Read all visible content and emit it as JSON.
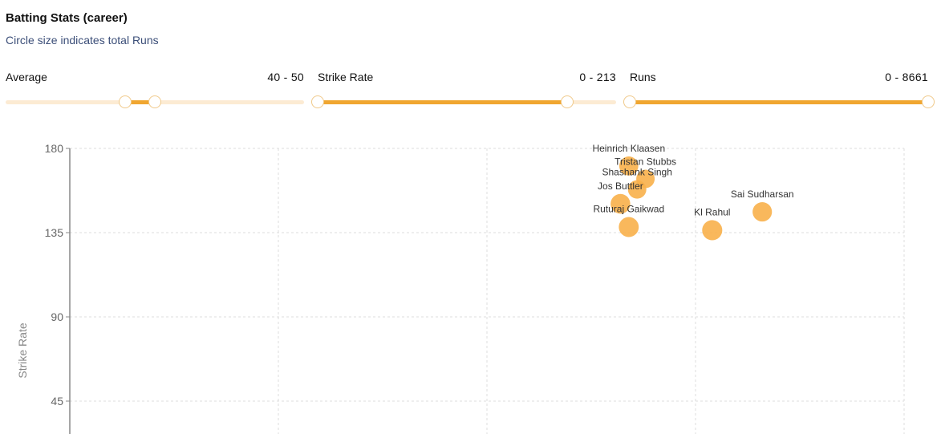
{
  "header": {
    "title": "Batting Stats (career)",
    "subtitle": "Circle size indicates total Runs"
  },
  "filters": [
    {
      "label": "Average",
      "range_text": "40 - 50",
      "min": 0,
      "max": 100,
      "low": 40,
      "high": 50
    },
    {
      "label": "Strike Rate",
      "range_text": "0 - 213",
      "min": 0,
      "max": 255,
      "low": 0,
      "high": 213
    },
    {
      "label": "Runs",
      "range_text": "0 - 8661",
      "min": 0,
      "max": 8661,
      "low": 0,
      "high": 8661
    }
  ],
  "colors": {
    "accent": "#f0a630",
    "point": "#f8b04a",
    "track": "#fcebd3"
  },
  "chart_data": {
    "type": "scatter",
    "title": "Batting Stats (career)",
    "subtitle": "Circle size indicates total Runs",
    "xlabel": "",
    "ylabel": "Strike Rate",
    "xlim": [
      40,
      50
    ],
    "ylim": [
      0,
      180
    ],
    "yticks": [
      "180",
      "135",
      "90",
      "45"
    ],
    "grid": true,
    "size_encodes": "Runs",
    "points": [
      {
        "name": "Heinrich Klaasen",
        "average": 46.7,
        "strike_rate": 170.6,
        "runs": 3000
      },
      {
        "name": "Tristan Stubbs",
        "average": 46.9,
        "strike_rate": 163.7,
        "runs": 2600
      },
      {
        "name": "Shashank Singh",
        "average": 46.8,
        "strike_rate": 158.1,
        "runs": 2600
      },
      {
        "name": "Jos Buttler",
        "average": 46.6,
        "strike_rate": 150.4,
        "runs": 3400
      },
      {
        "name": "Ruturaj Gaikwad",
        "average": 46.7,
        "strike_rate": 138.0,
        "runs": 3600
      },
      {
        "name": "Kl Rahul",
        "average": 47.7,
        "strike_rate": 136.3,
        "runs": 3700
      },
      {
        "name": "Sai Sudharsan",
        "average": 48.3,
        "strike_rate": 146.1,
        "runs": 3200
      }
    ]
  }
}
